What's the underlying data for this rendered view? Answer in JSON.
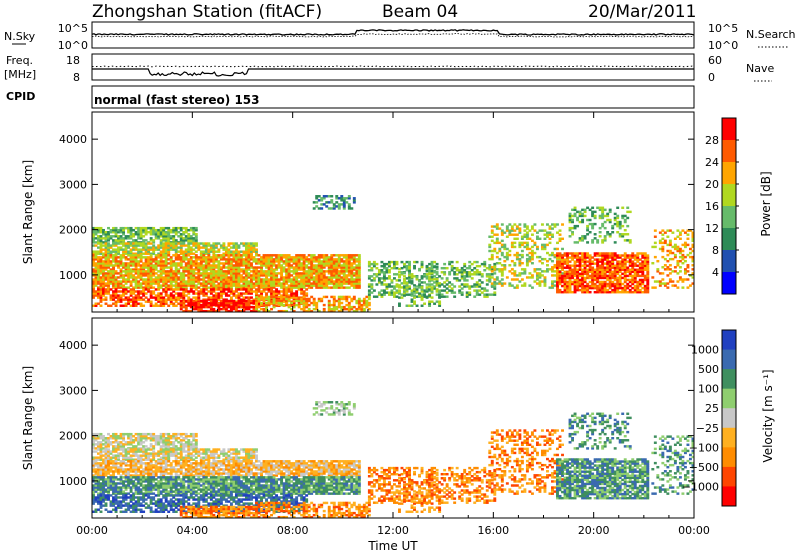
{
  "header": {
    "title": "Zhongshan Station (fitACF)",
    "beam": "Beam 04",
    "date": "20/Mar/2011"
  },
  "nsky_panel": {
    "left_label": "N.Sky",
    "right_label": "N.Search",
    "left_ticks": [
      "10^5",
      "10^0"
    ],
    "right_ticks": [
      "10^5",
      "10^0"
    ]
  },
  "freq_panel": {
    "left_label_1": "Freq.",
    "left_label_2": "[MHz]",
    "right_label": "Nave",
    "left_ticks": [
      "18",
      "8"
    ],
    "right_ticks": [
      "60",
      "0"
    ]
  },
  "cpid": {
    "label": "CPID",
    "mode": "normal (fast stereo) 153"
  },
  "colors": {
    "power_scale": [
      "#0000ff",
      "#2050b0",
      "#2e8b57",
      "#66bb6a",
      "#b0d820",
      "#ffa500",
      "#ff5a00",
      "#ff0000"
    ],
    "velocity_scale": [
      "#2040c0",
      "#3a6ab0",
      "#3f8f5f",
      "#8fce6f",
      "#c8c8c8",
      "#ffb020",
      "#ff8c00",
      "#ff4500",
      "#ff0000"
    ]
  },
  "chart_data": [
    {
      "type": "heatmap",
      "name": "power",
      "xlabel": "",
      "ylabel": "Slant Range [km]",
      "xlim": [
        0,
        24
      ],
      "ylim": [
        180,
        4600
      ],
      "x_ticks": [
        "00:00",
        "04:00",
        "08:00",
        "12:00",
        "16:00",
        "20:00",
        "00:00"
      ],
      "y_ticks": [
        1000,
        2000,
        3000,
        4000
      ],
      "colorbar_label": "Power [dB]",
      "colorbar_ticks": [
        4,
        8,
        12,
        16,
        20,
        24,
        28
      ],
      "colorbar_range": [
        0,
        32
      ]
    },
    {
      "type": "heatmap",
      "name": "velocity",
      "xlabel": "Time UT",
      "ylabel": "Slant Range [km]",
      "xlim": [
        0,
        24
      ],
      "ylim": [
        180,
        4600
      ],
      "x_ticks": [
        "00:00",
        "04:00",
        "08:00",
        "12:00",
        "16:00",
        "20:00",
        "00:00"
      ],
      "y_ticks": [
        1000,
        2000,
        3000,
        4000
      ],
      "colorbar_label": "Velocity [m s⁻¹]",
      "colorbar_ticks": [
        "1000",
        "500",
        "100",
        "25",
        "−25",
        "−100",
        "−500",
        "−1000"
      ]
    }
  ]
}
